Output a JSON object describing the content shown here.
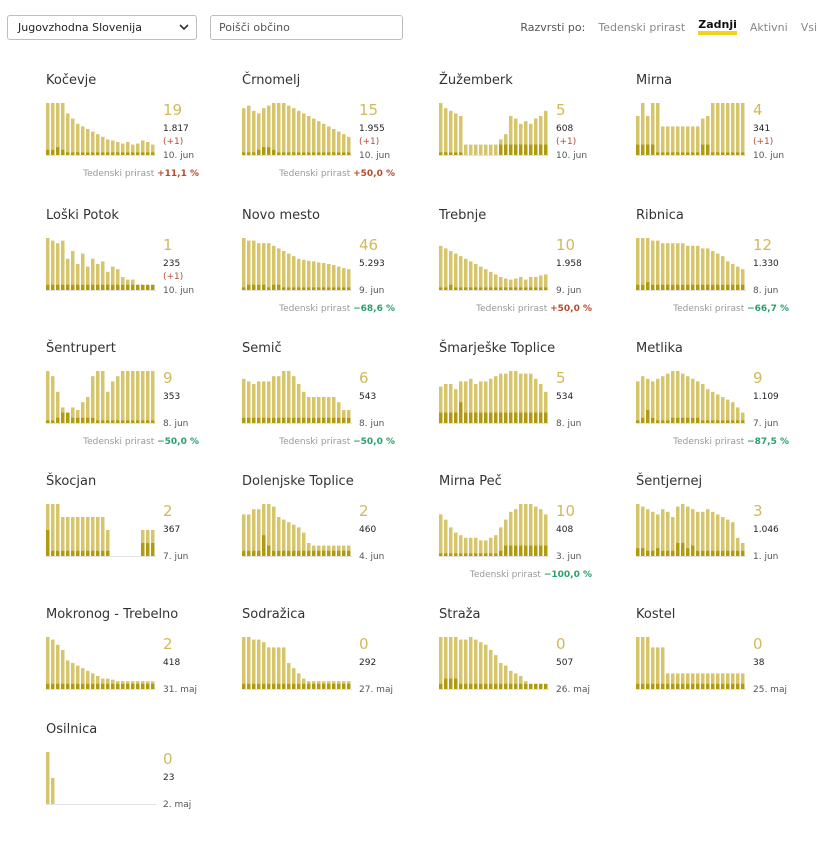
{
  "filter": {
    "region": "Jugovzhodna Slovenija",
    "search_placeholder": "Poišči občino"
  },
  "sort": {
    "label": "Razvrsti po:",
    "options": [
      "Tedenski prirast",
      "Zadnji",
      "Aktivni",
      "Vsi"
    ],
    "active": "Zadnji"
  },
  "colors": {
    "bar": "#d6c56a",
    "bar_dark": "#b09a10",
    "accent": "#f2d21c",
    "up": "#b74c2e",
    "down": "#2aa06a"
  },
  "growth_label": "Tedenski prirast",
  "chart_data": [
    {
      "type": "bar",
      "name": "Kočevje",
      "active": "19",
      "total": "1.817",
      "new": "(+1)",
      "date": "10. jun",
      "growth": "+11,1 %",
      "dir": "up",
      "values": [
        100,
        100,
        100,
        100,
        80,
        70,
        60,
        55,
        50,
        45,
        40,
        35,
        30,
        28,
        25,
        22,
        25,
        20,
        22,
        28,
        25,
        20
      ],
      "recent": [
        10,
        10,
        15,
        10,
        5,
        5,
        5,
        5,
        5,
        5,
        5,
        5,
        5,
        5,
        5,
        5,
        5,
        5,
        5,
        5,
        5,
        5
      ]
    },
    {
      "type": "bar",
      "name": "Črnomelj",
      "active": "15",
      "total": "1.955",
      "new": "(+1)",
      "date": "10. jun",
      "growth": "+50,0 %",
      "dir": "up",
      "values": [
        90,
        95,
        85,
        80,
        90,
        95,
        100,
        100,
        100,
        95,
        90,
        85,
        80,
        75,
        70,
        65,
        60,
        55,
        50,
        45,
        40,
        35
      ],
      "recent": [
        5,
        5,
        5,
        10,
        15,
        15,
        10,
        5,
        5,
        5,
        5,
        5,
        5,
        5,
        5,
        5,
        5,
        5,
        5,
        5,
        5,
        5
      ]
    },
    {
      "type": "bar",
      "name": "Žužemberk",
      "active": "5",
      "total": "608",
      "new": "(+1)",
      "date": "10. jun",
      "growth": "",
      "dir": "up",
      "values": [
        100,
        90,
        85,
        80,
        75,
        20,
        20,
        20,
        20,
        20,
        20,
        20,
        30,
        40,
        75,
        70,
        60,
        65,
        60,
        70,
        75,
        85
      ],
      "recent": [
        5,
        5,
        5,
        5,
        5,
        0,
        0,
        0,
        0,
        0,
        0,
        0,
        20,
        20,
        20,
        20,
        20,
        20,
        20,
        20,
        20,
        20
      ]
    },
    {
      "type": "bar",
      "name": "Mirna",
      "active": "4",
      "total": "341",
      "new": "(+1)",
      "date": "10. jun",
      "growth": "",
      "dir": "up",
      "values": [
        75,
        100,
        75,
        100,
        100,
        55,
        55,
        55,
        55,
        55,
        55,
        55,
        55,
        70,
        75,
        100,
        100,
        100,
        100,
        100,
        100,
        100
      ],
      "recent": [
        20,
        20,
        20,
        20,
        5,
        5,
        5,
        5,
        5,
        5,
        5,
        5,
        5,
        20,
        20,
        5,
        5,
        5,
        5,
        5,
        5,
        5
      ]
    },
    {
      "type": "bar",
      "name": "Loški Potok",
      "active": "1",
      "total": "235",
      "new": "(+1)",
      "date": "10. jun",
      "growth": "",
      "dir": "up",
      "values": [
        100,
        95,
        90,
        95,
        60,
        75,
        50,
        70,
        45,
        60,
        50,
        55,
        35,
        45,
        40,
        25,
        20,
        20,
        10,
        10,
        10,
        10
      ],
      "recent": [
        10,
        10,
        10,
        10,
        10,
        10,
        10,
        10,
        10,
        10,
        10,
        10,
        10,
        10,
        10,
        10,
        10,
        10,
        10,
        10,
        10,
        10
      ]
    },
    {
      "type": "bar",
      "name": "Novo mesto",
      "active": "46",
      "total": "5.293",
      "new": "",
      "date": "9. jun",
      "growth": "−68,6 %",
      "dir": "down",
      "values": [
        100,
        95,
        95,
        90,
        90,
        90,
        85,
        80,
        75,
        70,
        65,
        60,
        58,
        56,
        55,
        53,
        52,
        50,
        48,
        45,
        42,
        40
      ],
      "recent": [
        5,
        10,
        10,
        10,
        10,
        5,
        10,
        10,
        5,
        5,
        5,
        5,
        5,
        5,
        5,
        5,
        5,
        5,
        5,
        5,
        5,
        5
      ]
    },
    {
      "type": "bar",
      "name": "Trebnje",
      "active": "10",
      "total": "1.958",
      "new": "",
      "date": "9. jun",
      "growth": "+50,0 %",
      "dir": "up",
      "values": [
        85,
        80,
        75,
        70,
        65,
        60,
        55,
        50,
        45,
        40,
        35,
        30,
        25,
        22,
        20,
        22,
        25,
        20,
        25,
        25,
        28,
        30
      ],
      "recent": [
        5,
        5,
        10,
        5,
        5,
        5,
        5,
        5,
        5,
        5,
        5,
        5,
        5,
        5,
        5,
        5,
        5,
        5,
        5,
        5,
        5,
        5
      ]
    },
    {
      "type": "bar",
      "name": "Ribnica",
      "active": "12",
      "total": "1.330",
      "new": "",
      "date": "8. jun",
      "growth": "−66,7 %",
      "dir": "down",
      "values": [
        100,
        100,
        100,
        95,
        95,
        90,
        90,
        90,
        90,
        90,
        85,
        85,
        85,
        80,
        80,
        75,
        70,
        65,
        55,
        50,
        45,
        40
      ],
      "recent": [
        10,
        10,
        15,
        10,
        10,
        10,
        10,
        10,
        10,
        10,
        10,
        10,
        10,
        10,
        10,
        10,
        10,
        10,
        10,
        10,
        10,
        10
      ]
    },
    {
      "type": "bar",
      "name": "Šentrupert",
      "active": "9",
      "total": "353",
      "new": "",
      "date": "8. jun",
      "growth": "−50,0 %",
      "dir": "down",
      "values": [
        100,
        90,
        60,
        30,
        20,
        30,
        25,
        40,
        50,
        90,
        100,
        100,
        60,
        80,
        90,
        100,
        100,
        100,
        100,
        100,
        100,
        100
      ],
      "recent": [
        5,
        5,
        10,
        20,
        20,
        10,
        10,
        10,
        10,
        10,
        5,
        5,
        5,
        5,
        5,
        5,
        5,
        5,
        5,
        5,
        5,
        5
      ]
    },
    {
      "type": "bar",
      "name": "Semič",
      "active": "6",
      "total": "543",
      "new": "",
      "date": "8. jun",
      "growth": "−50,0 %",
      "dir": "down",
      "values": [
        85,
        80,
        75,
        80,
        80,
        80,
        90,
        90,
        100,
        100,
        90,
        75,
        60,
        50,
        50,
        50,
        50,
        50,
        50,
        40,
        25,
        25
      ],
      "recent": [
        10,
        10,
        10,
        10,
        10,
        10,
        10,
        10,
        10,
        10,
        10,
        10,
        10,
        10,
        10,
        10,
        10,
        10,
        10,
        10,
        10,
        10
      ]
    },
    {
      "type": "bar",
      "name": "Šmarješke Toplice",
      "active": "5",
      "total": "534",
      "new": "",
      "date": "8. jun",
      "growth": "",
      "dir": "up",
      "values": [
        70,
        75,
        75,
        65,
        80,
        80,
        85,
        75,
        80,
        80,
        85,
        90,
        95,
        95,
        100,
        100,
        95,
        95,
        95,
        85,
        75,
        60
      ],
      "recent": [
        20,
        20,
        20,
        20,
        40,
        20,
        20,
        20,
        20,
        20,
        20,
        20,
        20,
        20,
        20,
        20,
        20,
        20,
        20,
        20,
        20,
        20
      ]
    },
    {
      "type": "bar",
      "name": "Metlika",
      "active": "9",
      "total": "1.109",
      "new": "",
      "date": "7. jun",
      "growth": "−87,5 %",
      "dir": "down",
      "values": [
        80,
        90,
        85,
        80,
        85,
        90,
        95,
        100,
        100,
        95,
        90,
        85,
        80,
        75,
        65,
        60,
        55,
        50,
        45,
        40,
        30,
        20
      ],
      "recent": [
        5,
        10,
        25,
        10,
        5,
        5,
        5,
        10,
        10,
        10,
        10,
        10,
        10,
        5,
        5,
        5,
        5,
        5,
        5,
        5,
        5,
        5
      ]
    },
    {
      "type": "bar",
      "name": "Škocjan",
      "active": "2",
      "total": "367",
      "new": "",
      "date": "7. jun",
      "growth": "",
      "dir": "up",
      "values": [
        100,
        100,
        100,
        75,
        75,
        75,
        75,
        75,
        75,
        75,
        75,
        75,
        50,
        0,
        0,
        0,
        0,
        0,
        0,
        50,
        50,
        50
      ],
      "recent": [
        50,
        10,
        10,
        10,
        10,
        10,
        10,
        10,
        10,
        10,
        10,
        10,
        10,
        0,
        0,
        0,
        0,
        0,
        0,
        25,
        25,
        25
      ]
    },
    {
      "type": "bar",
      "name": "Dolenjske Toplice",
      "active": "2",
      "total": "460",
      "new": "",
      "date": "4. jun",
      "growth": "",
      "dir": "up",
      "values": [
        80,
        80,
        90,
        90,
        100,
        100,
        95,
        75,
        70,
        65,
        60,
        55,
        45,
        25,
        20,
        20,
        20,
        20,
        20,
        20,
        20,
        20
      ],
      "recent": [
        10,
        10,
        10,
        10,
        40,
        20,
        10,
        10,
        10,
        10,
        10,
        10,
        10,
        10,
        10,
        10,
        10,
        10,
        10,
        10,
        10,
        10
      ]
    },
    {
      "type": "bar",
      "name": "Mirna Peč",
      "active": "10",
      "total": "408",
      "new": "",
      "date": "3. jun",
      "growth": "−100,0 %",
      "dir": "down",
      "values": [
        80,
        70,
        55,
        45,
        40,
        35,
        35,
        35,
        30,
        30,
        35,
        40,
        55,
        70,
        85,
        90,
        100,
        100,
        100,
        95,
        90,
        80
      ],
      "recent": [
        5,
        5,
        5,
        5,
        5,
        5,
        5,
        5,
        5,
        5,
        5,
        5,
        10,
        20,
        20,
        20,
        20,
        20,
        20,
        20,
        20,
        20
      ]
    },
    {
      "type": "bar",
      "name": "Šentjernej",
      "active": "3",
      "total": "1.046",
      "new": "",
      "date": "1. jun",
      "growth": "",
      "dir": "up",
      "values": [
        100,
        95,
        90,
        85,
        80,
        90,
        85,
        75,
        95,
        100,
        95,
        90,
        85,
        85,
        90,
        85,
        80,
        75,
        70,
        65,
        35,
        25
      ],
      "recent": [
        15,
        15,
        10,
        10,
        15,
        10,
        10,
        10,
        25,
        25,
        15,
        20,
        10,
        10,
        10,
        10,
        10,
        10,
        10,
        10,
        10,
        10
      ]
    },
    {
      "type": "bar",
      "name": "Mokronog - Trebelno",
      "active": "2",
      "total": "418",
      "new": "",
      "date": "31. maj",
      "growth": "",
      "dir": "up",
      "values": [
        100,
        95,
        85,
        75,
        55,
        50,
        45,
        40,
        35,
        30,
        25,
        20,
        20,
        18,
        15,
        15,
        15,
        15,
        15,
        15,
        15,
        15
      ],
      "recent": [
        10,
        10,
        10,
        10,
        10,
        10,
        10,
        10,
        10,
        10,
        10,
        10,
        10,
        10,
        10,
        10,
        10,
        10,
        10,
        10,
        10,
        10
      ]
    },
    {
      "type": "bar",
      "name": "Sodražica",
      "active": "0",
      "total": "292",
      "new": "",
      "date": "27. maj",
      "growth": "",
      "dir": "up",
      "values": [
        100,
        100,
        95,
        95,
        90,
        80,
        80,
        80,
        80,
        50,
        40,
        30,
        20,
        15,
        15,
        15,
        15,
        15,
        15,
        15,
        15,
        15
      ],
      "recent": [
        10,
        10,
        10,
        10,
        10,
        10,
        10,
        10,
        10,
        10,
        10,
        10,
        10,
        10,
        10,
        10,
        10,
        10,
        10,
        10,
        10,
        10
      ]
    },
    {
      "type": "bar",
      "name": "Straža",
      "active": "0",
      "total": "507",
      "new": "",
      "date": "26. maj",
      "growth": "",
      "dir": "up",
      "values": [
        100,
        100,
        100,
        100,
        95,
        95,
        100,
        95,
        90,
        85,
        75,
        65,
        50,
        45,
        35,
        30,
        25,
        15,
        10,
        10,
        5,
        5
      ],
      "recent": [
        10,
        20,
        20,
        20,
        10,
        10,
        10,
        10,
        10,
        10,
        10,
        10,
        10,
        10,
        10,
        10,
        10,
        10,
        10,
        10,
        10,
        10
      ]
    },
    {
      "type": "bar",
      "name": "Kostel",
      "active": "0",
      "total": "38",
      "new": "",
      "date": "25. maj",
      "growth": "",
      "dir": "up",
      "values": [
        100,
        100,
        100,
        80,
        80,
        80,
        30,
        30,
        30,
        30,
        30,
        30,
        30,
        30,
        30,
        30,
        30,
        30,
        30,
        30,
        30,
        30
      ],
      "recent": [
        10,
        10,
        10,
        10,
        10,
        10,
        10,
        10,
        10,
        10,
        10,
        10,
        10,
        10,
        10,
        10,
        10,
        10,
        10,
        10,
        10,
        10
      ]
    },
    {
      "type": "bar",
      "name": "Osilnica",
      "active": "0",
      "total": "23",
      "new": "",
      "date": "2. maj",
      "growth": "",
      "dir": "up",
      "values": [
        100,
        50,
        0,
        0,
        0,
        0,
        0,
        0,
        0,
        0,
        0,
        0,
        0,
        0,
        0,
        0,
        0,
        0,
        0,
        0,
        0,
        0
      ],
      "recent": [
        0,
        0,
        0,
        0,
        0,
        0,
        0,
        0,
        0,
        0,
        0,
        0,
        0,
        0,
        0,
        0,
        0,
        0,
        0,
        0,
        0,
        0
      ]
    }
  ]
}
